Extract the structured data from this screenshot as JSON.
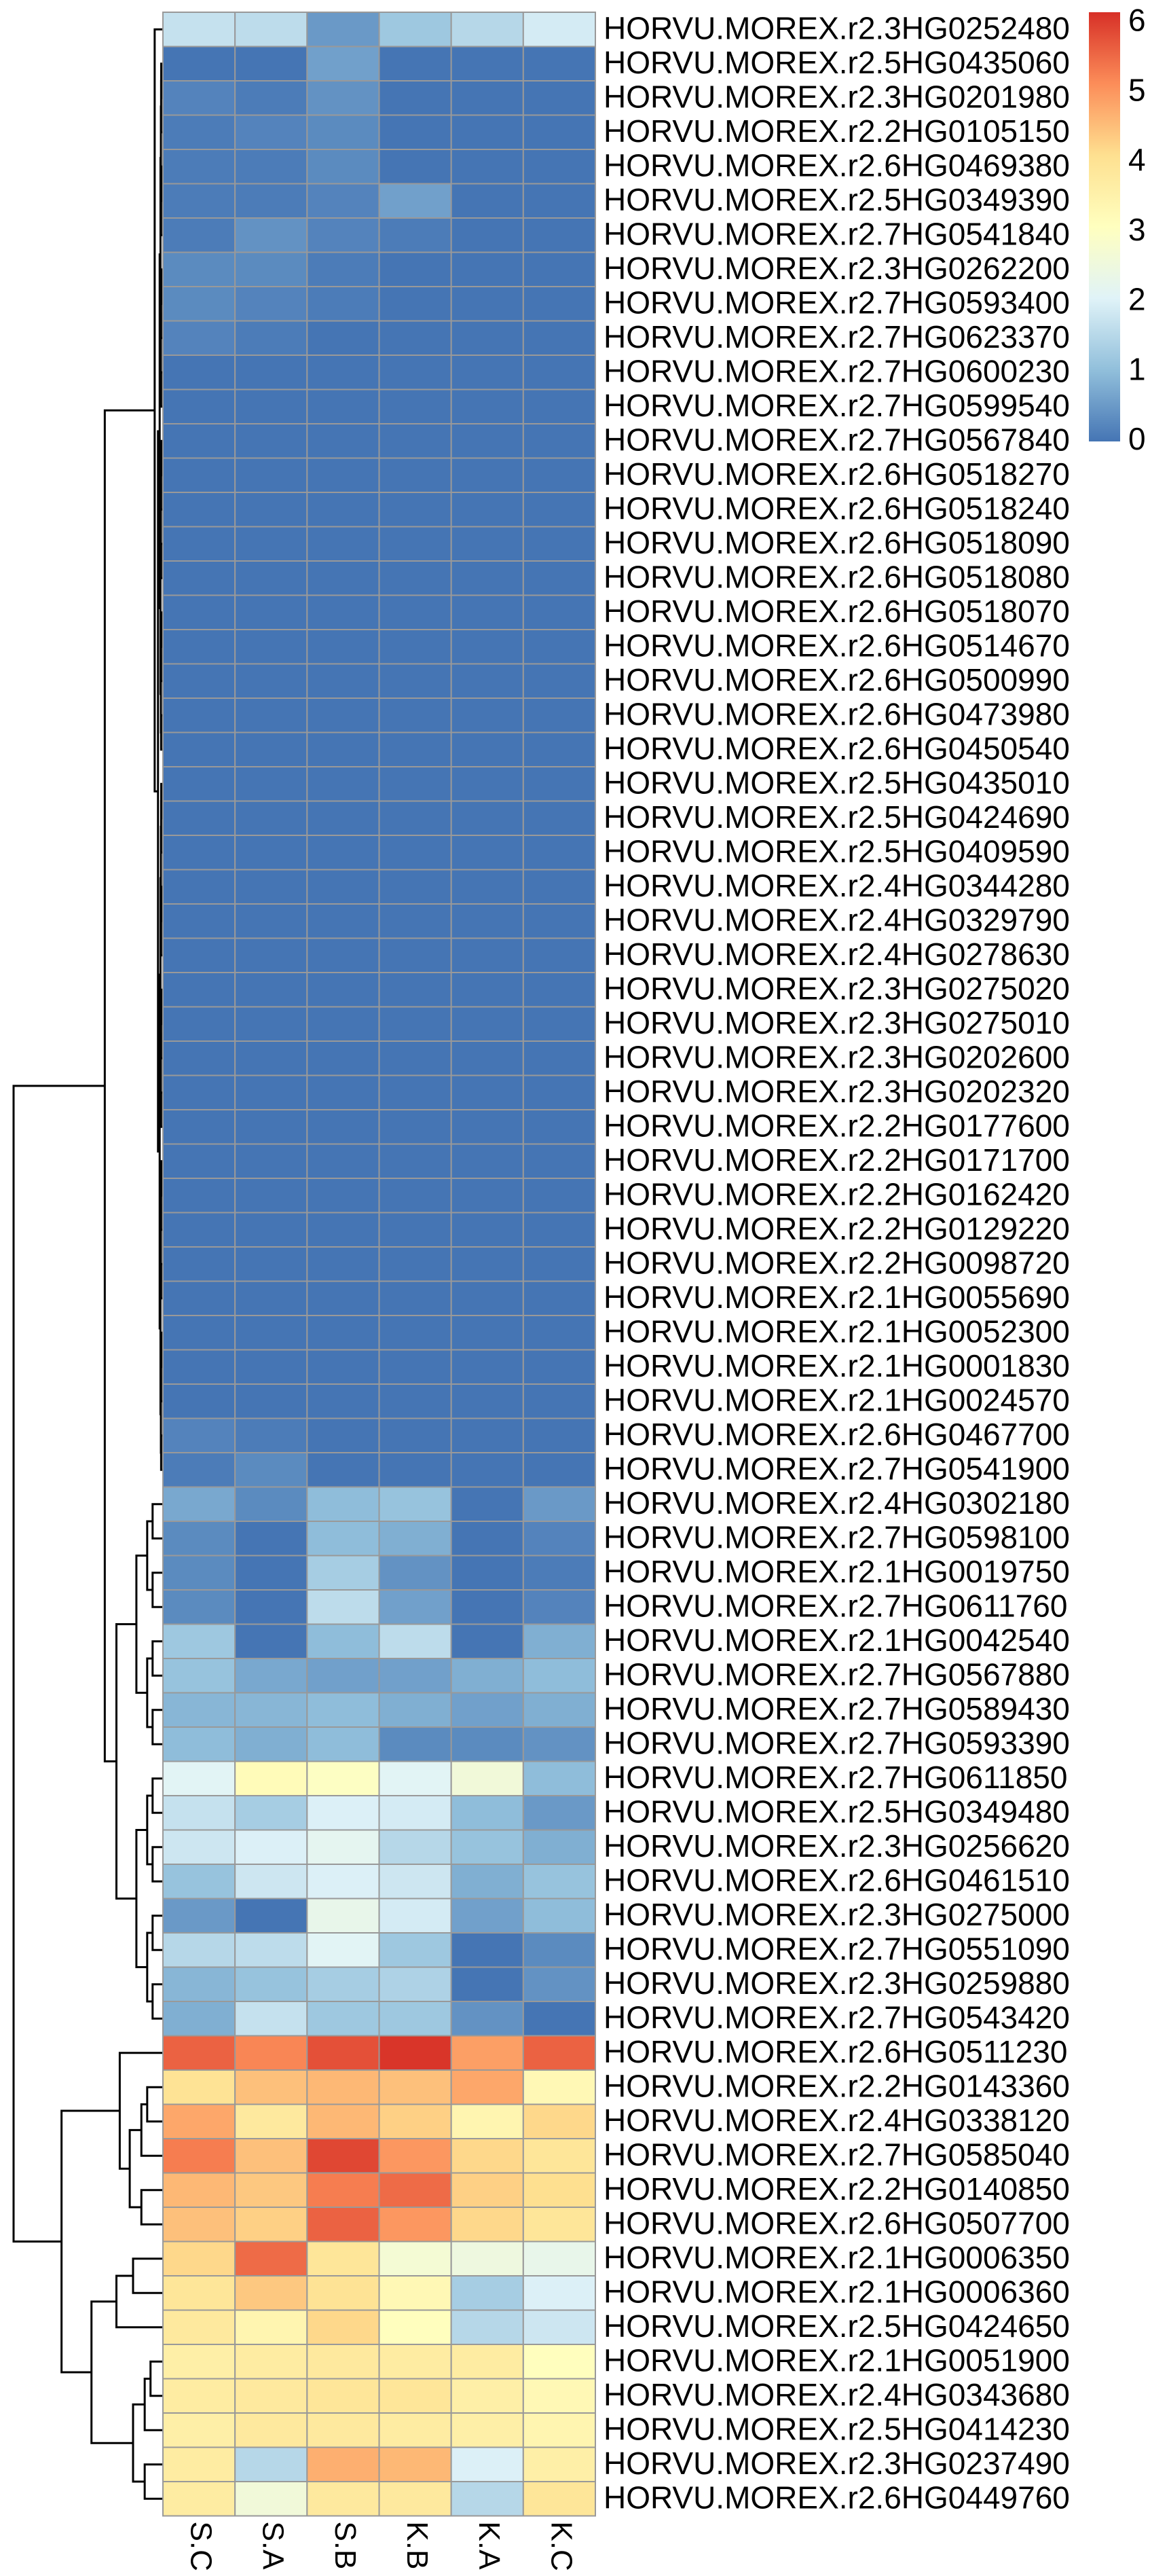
{
  "chart_data": {
    "type": "heatmap",
    "rows": [
      "HORVU.MOREX.r2.3HG0252480",
      "HORVU.MOREX.r2.5HG0435060",
      "HORVU.MOREX.r2.3HG0201980",
      "HORVU.MOREX.r2.2HG0105150",
      "HORVU.MOREX.r2.6HG0469380",
      "HORVU.MOREX.r2.5HG0349390",
      "HORVU.MOREX.r2.7HG0541840",
      "HORVU.MOREX.r2.3HG0262200",
      "HORVU.MOREX.r2.7HG0593400",
      "HORVU.MOREX.r2.7HG0623370",
      "HORVU.MOREX.r2.7HG0600230",
      "HORVU.MOREX.r2.7HG0599540",
      "HORVU.MOREX.r2.7HG0567840",
      "HORVU.MOREX.r2.6HG0518270",
      "HORVU.MOREX.r2.6HG0518240",
      "HORVU.MOREX.r2.6HG0518090",
      "HORVU.MOREX.r2.6HG0518080",
      "HORVU.MOREX.r2.6HG0518070",
      "HORVU.MOREX.r2.6HG0514670",
      "HORVU.MOREX.r2.6HG0500990",
      "HORVU.MOREX.r2.6HG0473980",
      "HORVU.MOREX.r2.6HG0450540",
      "HORVU.MOREX.r2.5HG0435010",
      "HORVU.MOREX.r2.5HG0424690",
      "HORVU.MOREX.r2.5HG0409590",
      "HORVU.MOREX.r2.4HG0344280",
      "HORVU.MOREX.r2.4HG0329790",
      "HORVU.MOREX.r2.4HG0278630",
      "HORVU.MOREX.r2.3HG0275020",
      "HORVU.MOREX.r2.3HG0275010",
      "HORVU.MOREX.r2.3HG0202600",
      "HORVU.MOREX.r2.3HG0202320",
      "HORVU.MOREX.r2.2HG0177600",
      "HORVU.MOREX.r2.2HG0171700",
      "HORVU.MOREX.r2.2HG0162420",
      "HORVU.MOREX.r2.2HG0129220",
      "HORVU.MOREX.r2.2HG0098720",
      "HORVU.MOREX.r2.1HG0055690",
      "HORVU.MOREX.r2.1HG0052300",
      "HORVU.MOREX.r2.1HG0001830",
      "HORVU.MOREX.r2.1HG0024570",
      "HORVU.MOREX.r2.6HG0467700",
      "HORVU.MOREX.r2.7HG0541900",
      "HORVU.MOREX.r2.4HG0302180",
      "HORVU.MOREX.r2.7HG0598100",
      "HORVU.MOREX.r2.1HG0019750",
      "HORVU.MOREX.r2.7HG0611760",
      "HORVU.MOREX.r2.1HG0042540",
      "HORVU.MOREX.r2.7HG0567880",
      "HORVU.MOREX.r2.7HG0589430",
      "HORVU.MOREX.r2.7HG0593390",
      "HORVU.MOREX.r2.7HG0611850",
      "HORVU.MOREX.r2.5HG0349480",
      "HORVU.MOREX.r2.3HG0256620",
      "HORVU.MOREX.r2.6HG0461510",
      "HORVU.MOREX.r2.3HG0275000",
      "HORVU.MOREX.r2.7HG0551090",
      "HORVU.MOREX.r2.3HG0259880",
      "HORVU.MOREX.r2.7HG0543420",
      "HORVU.MOREX.r2.6HG0511230",
      "HORVU.MOREX.r2.2HG0143360",
      "HORVU.MOREX.r2.4HG0338120",
      "HORVU.MOREX.r2.7HG0585040",
      "HORVU.MOREX.r2.2HG0140850",
      "HORVU.MOREX.r2.6HG0507700",
      "HORVU.MOREX.r2.1HG0006350",
      "HORVU.MOREX.r2.1HG0006360",
      "HORVU.MOREX.r2.5HG0424650",
      "HORVU.MOREX.r2.1HG0051900",
      "HORVU.MOREX.r2.4HG0343680",
      "HORVU.MOREX.r2.5HG0414230",
      "HORVU.MOREX.r2.3HG0237490",
      "HORVU.MOREX.r2.6HG0449760"
    ],
    "columns": [
      "S.C",
      "S.A",
      "S.B",
      "K.B",
      "K.A",
      "K.C"
    ],
    "values": [
      [
        1.7,
        1.6,
        0.5,
        1.2,
        1.5,
        1.9
      ],
      [
        0,
        0,
        0.6,
        0,
        0,
        0
      ],
      [
        0.2,
        0.1,
        0.4,
        0,
        0,
        0
      ],
      [
        0.1,
        0.2,
        0.3,
        0,
        0,
        0
      ],
      [
        0.1,
        0.1,
        0.3,
        0,
        0,
        0
      ],
      [
        0.1,
        0.1,
        0.2,
        0.6,
        0,
        0
      ],
      [
        0.1,
        0.4,
        0.2,
        0.1,
        0,
        0
      ],
      [
        0.3,
        0.3,
        0.1,
        0,
        0,
        0
      ],
      [
        0.3,
        0.2,
        0.1,
        0,
        0,
        0
      ],
      [
        0.2,
        0.1,
        0,
        0,
        0,
        0
      ],
      [
        0,
        0,
        0,
        0,
        0,
        0
      ],
      [
        0,
        0,
        0,
        0,
        0,
        0
      ],
      [
        0,
        0,
        0,
        0,
        0,
        0
      ],
      [
        0,
        0,
        0,
        0,
        0,
        0
      ],
      [
        0,
        0,
        0,
        0,
        0,
        0
      ],
      [
        0,
        0,
        0,
        0,
        0,
        0
      ],
      [
        0,
        0,
        0,
        0,
        0,
        0
      ],
      [
        0,
        0,
        0,
        0,
        0,
        0
      ],
      [
        0,
        0,
        0,
        0,
        0,
        0
      ],
      [
        0,
        0,
        0,
        0,
        0,
        0
      ],
      [
        0,
        0,
        0,
        0,
        0,
        0
      ],
      [
        0,
        0,
        0,
        0,
        0,
        0
      ],
      [
        0,
        0,
        0,
        0,
        0,
        0
      ],
      [
        0,
        0,
        0,
        0,
        0,
        0
      ],
      [
        0,
        0,
        0,
        0,
        0,
        0
      ],
      [
        0,
        0,
        0,
        0,
        0,
        0
      ],
      [
        0,
        0,
        0,
        0,
        0,
        0
      ],
      [
        0,
        0,
        0,
        0,
        0,
        0
      ],
      [
        0,
        0,
        0,
        0,
        0,
        0
      ],
      [
        0,
        0,
        0,
        0,
        0,
        0
      ],
      [
        0,
        0,
        0,
        0,
        0,
        0
      ],
      [
        0,
        0,
        0,
        0,
        0,
        0
      ],
      [
        0,
        0,
        0,
        0,
        0,
        0
      ],
      [
        0,
        0,
        0,
        0,
        0,
        0
      ],
      [
        0,
        0,
        0,
        0,
        0,
        0
      ],
      [
        0,
        0,
        0,
        0,
        0,
        0
      ],
      [
        0,
        0,
        0,
        0,
        0,
        0
      ],
      [
        0,
        0,
        0,
        0,
        0,
        0
      ],
      [
        0,
        0,
        0,
        0,
        0,
        0
      ],
      [
        0,
        0,
        0,
        0,
        0,
        0
      ],
      [
        0,
        0,
        0,
        0,
        0,
        0
      ],
      [
        0.2,
        0.1,
        0,
        0,
        0,
        0
      ],
      [
        0.1,
        0.3,
        0,
        0,
        0,
        0
      ],
      [
        0.7,
        0.3,
        1.0,
        1.1,
        0,
        0.5
      ],
      [
        0.3,
        0,
        1.0,
        0.8,
        0,
        0.2
      ],
      [
        0.3,
        0,
        1.3,
        0.4,
        0,
        0.1
      ],
      [
        0.3,
        0,
        1.6,
        0.6,
        0,
        0.2
      ],
      [
        1.2,
        0,
        1.0,
        1.6,
        0,
        0.8
      ],
      [
        1.1,
        0.7,
        0.6,
        0.6,
        0.8,
        1.0
      ],
      [
        0.9,
        0.9,
        1.0,
        0.8,
        0.6,
        0.8
      ],
      [
        1.0,
        0.8,
        1.0,
        0.3,
        0.3,
        0.4
      ],
      [
        2.1,
        3.2,
        3.0,
        2.1,
        2.6,
        1.0
      ],
      [
        1.7,
        1.3,
        2.0,
        1.9,
        1.0,
        0.5
      ],
      [
        1.8,
        2.0,
        2.2,
        1.5,
        1.1,
        0.8
      ],
      [
        1.1,
        1.8,
        2.0,
        1.8,
        0.8,
        1.1
      ],
      [
        0.5,
        0,
        2.3,
        1.9,
        0.6,
        1.0
      ],
      [
        1.5,
        1.6,
        2.1,
        1.2,
        0,
        0.3
      ],
      [
        0.9,
        1.1,
        1.3,
        1.4,
        0,
        0.4
      ],
      [
        0.8,
        1.7,
        1.2,
        1.2,
        0.4,
        0
      ],
      [
        5.6,
        5.2,
        5.8,
        6.1,
        4.9,
        5.6
      ],
      [
        4.0,
        4.5,
        4.6,
        4.5,
        4.8,
        3.3
      ],
      [
        4.8,
        3.8,
        4.6,
        4.3,
        3.4,
        4.2
      ],
      [
        5.3,
        4.5,
        5.9,
        5.0,
        4.2,
        3.9
      ],
      [
        4.6,
        4.4,
        5.3,
        5.5,
        4.3,
        4.1
      ],
      [
        4.5,
        4.3,
        5.6,
        5.0,
        4.2,
        3.9
      ],
      [
        4.2,
        5.5,
        3.9,
        2.7,
        2.5,
        2.3
      ],
      [
        3.9,
        4.4,
        4.0,
        3.3,
        1.3,
        2.0
      ],
      [
        3.8,
        3.4,
        4.2,
        3.1,
        1.5,
        1.8
      ],
      [
        3.6,
        3.7,
        3.8,
        3.7,
        3.7,
        3.1
      ],
      [
        3.7,
        3.8,
        3.9,
        3.9,
        3.6,
        3.3
      ],
      [
        3.6,
        3.8,
        3.8,
        3.7,
        3.6,
        3.4
      ],
      [
        3.7,
        1.5,
        4.7,
        4.6,
        2.0,
        3.6
      ],
      [
        3.7,
        2.6,
        3.8,
        3.8,
        1.5,
        3.9
      ]
    ],
    "colors": [
      "#4575B4",
      "#91BFDB",
      "#E0F3F8",
      "#FFFFBF",
      "#FEE090",
      "#FC8D59",
      "#D73027"
    ],
    "clim": [
      0,
      6.15
    ],
    "legend_ticks": [
      0,
      1,
      2,
      3,
      4,
      5,
      6
    ],
    "border_color": "#999999"
  }
}
